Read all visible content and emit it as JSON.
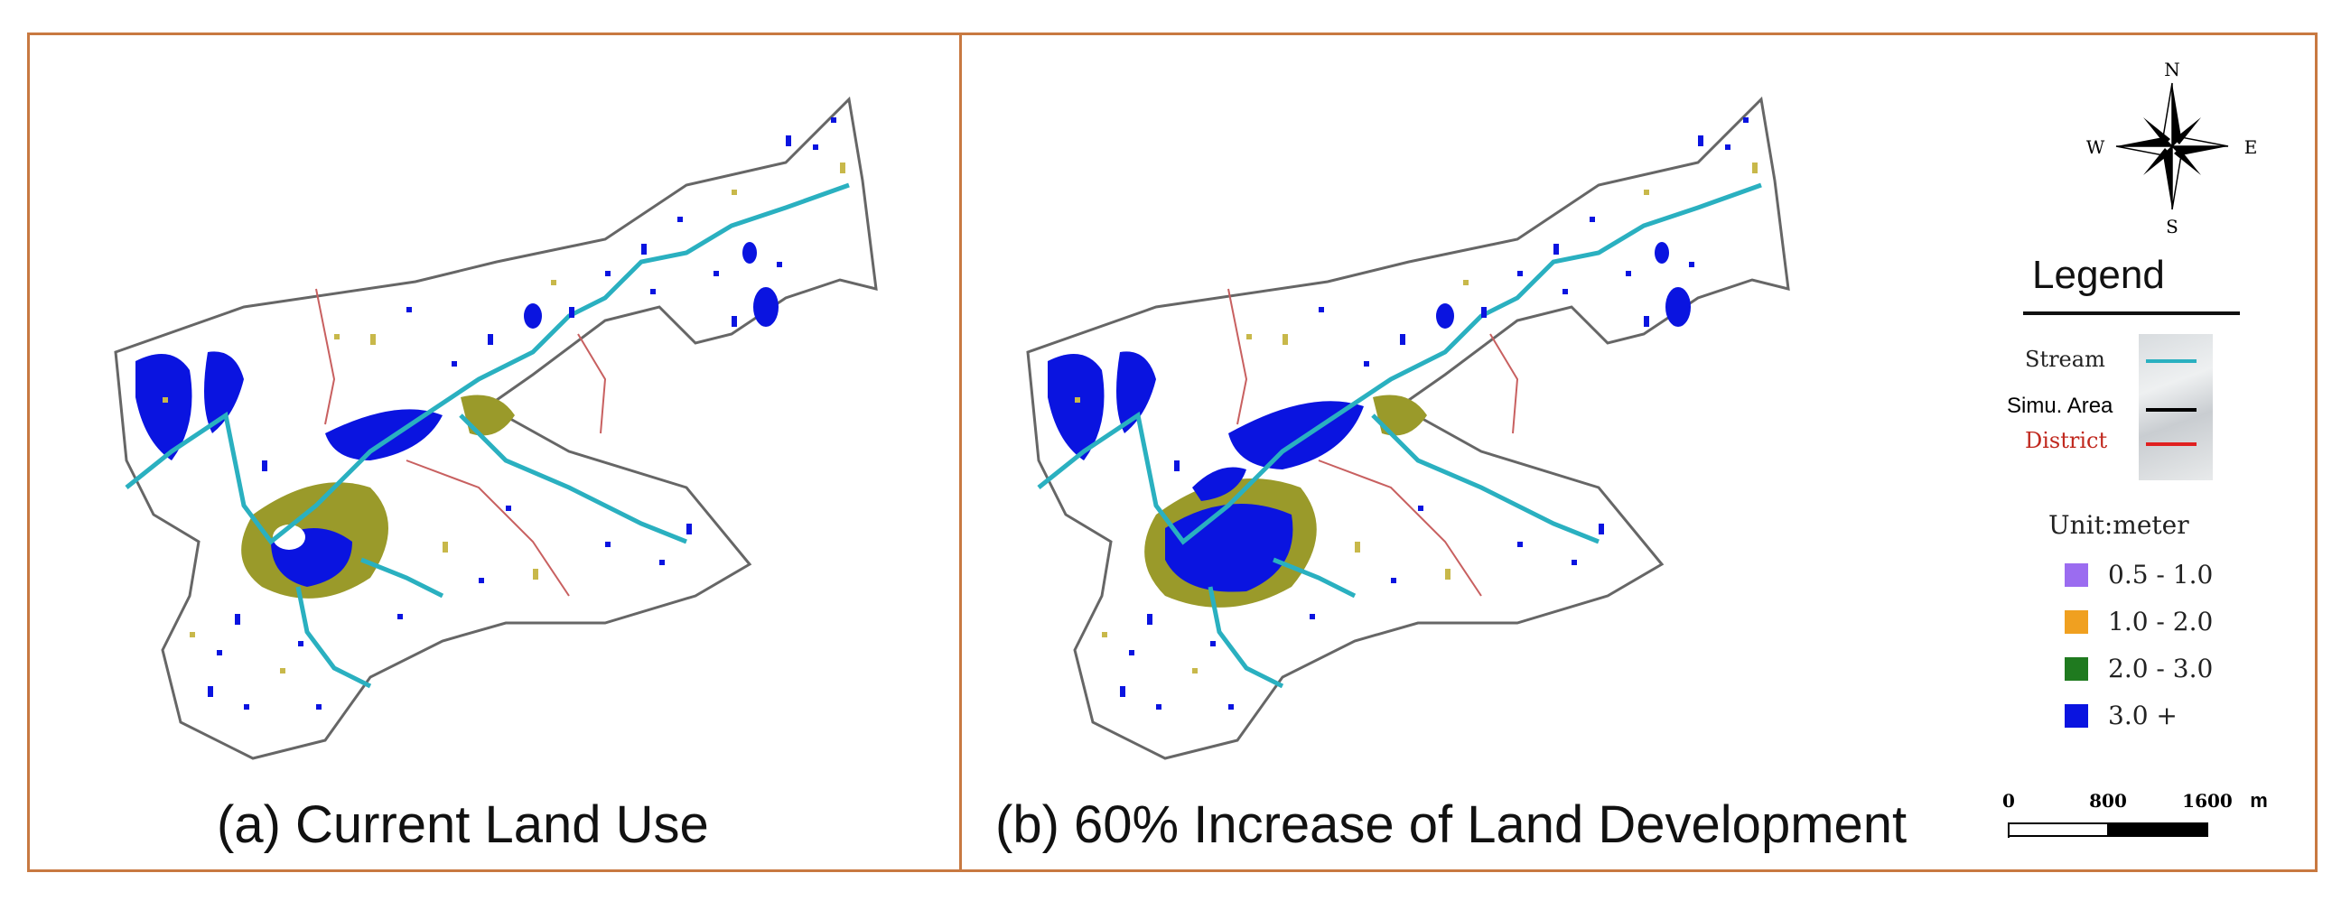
{
  "captions": {
    "a": "(a) Current Land Use",
    "b": "(b) 60% Increase of Land Development"
  },
  "compass": {
    "n": "N",
    "s": "S",
    "e": "E",
    "w": "W"
  },
  "legend": {
    "title": "Legend",
    "lines": [
      {
        "label": "Stream",
        "color": "#2ab0c0"
      },
      {
        "label": "Simu. Area",
        "color": "#000000"
      },
      {
        "label": "District",
        "color": "#e02020"
      }
    ],
    "unit": "Unit:meter",
    "classes": [
      {
        "label": "0.5 - 1.0",
        "color": "#9b6cf0"
      },
      {
        "label": "1.0 - 2.0",
        "color": "#f0a020"
      },
      {
        "label": "2.0 - 3.0",
        "color": "#1f7a1f"
      },
      {
        "label": "3.0 +",
        "color": "#0a14e0"
      }
    ]
  },
  "scale_bar": {
    "ticks": [
      "0",
      "800",
      "1600"
    ],
    "unit": "m"
  },
  "colors": {
    "frame": "#c87941",
    "flood_deep": "#0a14e0",
    "flood_mid": "#9a9a2a",
    "stream": "#2ab0c0",
    "district": "#c86060"
  }
}
